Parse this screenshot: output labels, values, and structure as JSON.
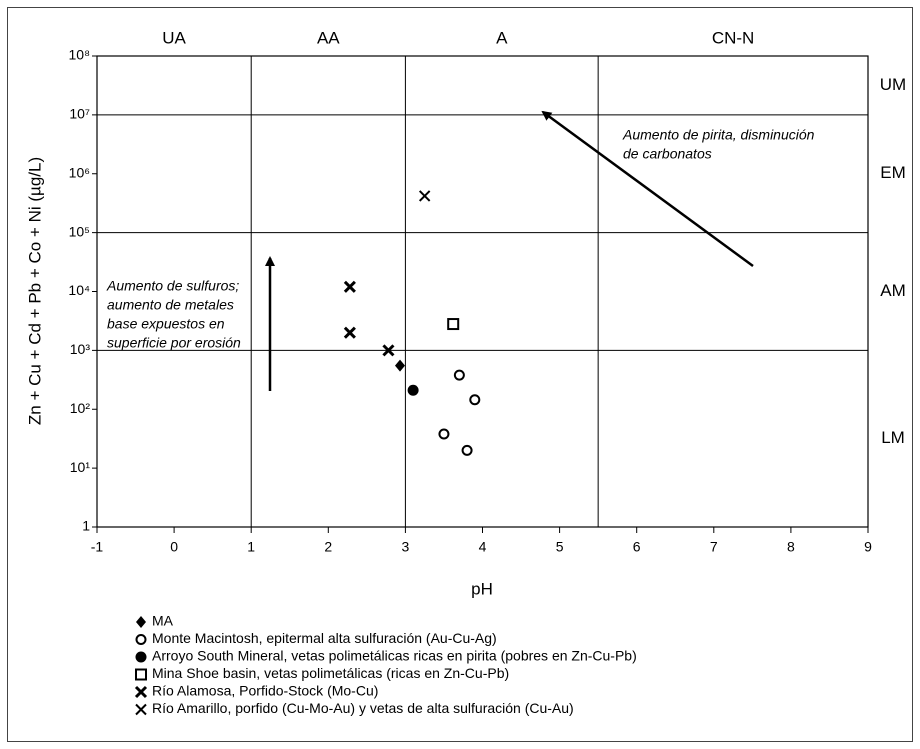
{
  "chart_data": {
    "type": "scatter",
    "x_label": "pH",
    "y_label": "Zn + Cu + Cd + Pb + Co + Ni (µg/L)",
    "xlim": [
      -1,
      9
    ],
    "xticks": [
      -1,
      0,
      1,
      2,
      3,
      4,
      5,
      6,
      7,
      8,
      9
    ],
    "ylim": [
      1,
      100000000
    ],
    "log_y": true,
    "yticks": [
      1,
      {
        "value": 10,
        "label": "10¹"
      },
      {
        "value": 100,
        "label": "10²"
      },
      {
        "value": 1000,
        "label": "10³"
      },
      {
        "value": 10000,
        "label": "10⁴"
      },
      {
        "value": 100000,
        "label": "10⁵"
      },
      {
        "value": 1000000,
        "label": "10⁶"
      },
      {
        "value": 10000000,
        "label": "10⁷"
      },
      {
        "value": 100000000,
        "label": "10⁸"
      }
    ],
    "ph_zones": [
      {
        "label": "UA",
        "range": [
          -1,
          1
        ]
      },
      {
        "label": "AA",
        "range": [
          1,
          3
        ]
      },
      {
        "label": "A",
        "range": [
          3,
          5.5
        ]
      },
      {
        "label": "CN-N",
        "range": [
          5.5,
          9
        ]
      }
    ],
    "metal_zones": [
      {
        "label": "UM",
        "range": [
          10000000,
          100000000
        ]
      },
      {
        "label": "EM",
        "range": [
          100000,
          10000000
        ]
      },
      {
        "label": "AM",
        "range": [
          1000,
          100000
        ]
      },
      {
        "label": "LM",
        "range": [
          1,
          1000
        ]
      }
    ],
    "annotations": [
      [
        "Aumento de sulfuros;",
        "aumento de metales",
        "base expuestos en",
        "superficie por erosión"
      ],
      [
        "Aumento de pirita, disminución",
        "de carbonatos"
      ]
    ],
    "color": "#000000",
    "series": [
      {
        "name": "MA",
        "marker": "diamond",
        "x": [
          2.93
        ],
        "values": [
          550
        ]
      },
      {
        "name": "Monte Macintosh, epitermal alta sulfuración (Au-Cu-Ag)",
        "marker": "circle-open",
        "x": [
          3.7,
          3.9,
          3.5,
          3.8
        ],
        "values": [
          380,
          145,
          38,
          20
        ]
      },
      {
        "name": "Arroyo South Mineral, vetas polimetálicas ricas en pirita (pobres en Zn-Cu-Pb)",
        "marker": "circle-filled",
        "x": [
          3.1
        ],
        "values": [
          210
        ]
      },
      {
        "name": "Mina Shoe basin, vetas polimetálicas (ricas en Zn-Cu-Pb)",
        "marker": "square-open",
        "x": [
          3.62
        ],
        "values": [
          2800
        ]
      },
      {
        "name": "Río Alamosa, Porfido-Stock (Mo-Cu)",
        "marker": "x-bold",
        "x": [
          2.28,
          2.28,
          2.78
        ],
        "values": [
          12000,
          2000,
          1000
        ]
      },
      {
        "name": "Río Amarillo, porfido (Cu-Mo-Au) y vetas de alta sulfuración (Cu-Au)",
        "marker": "x-thin",
        "x": [
          3.25
        ],
        "values": [
          420000
        ]
      }
    ]
  }
}
